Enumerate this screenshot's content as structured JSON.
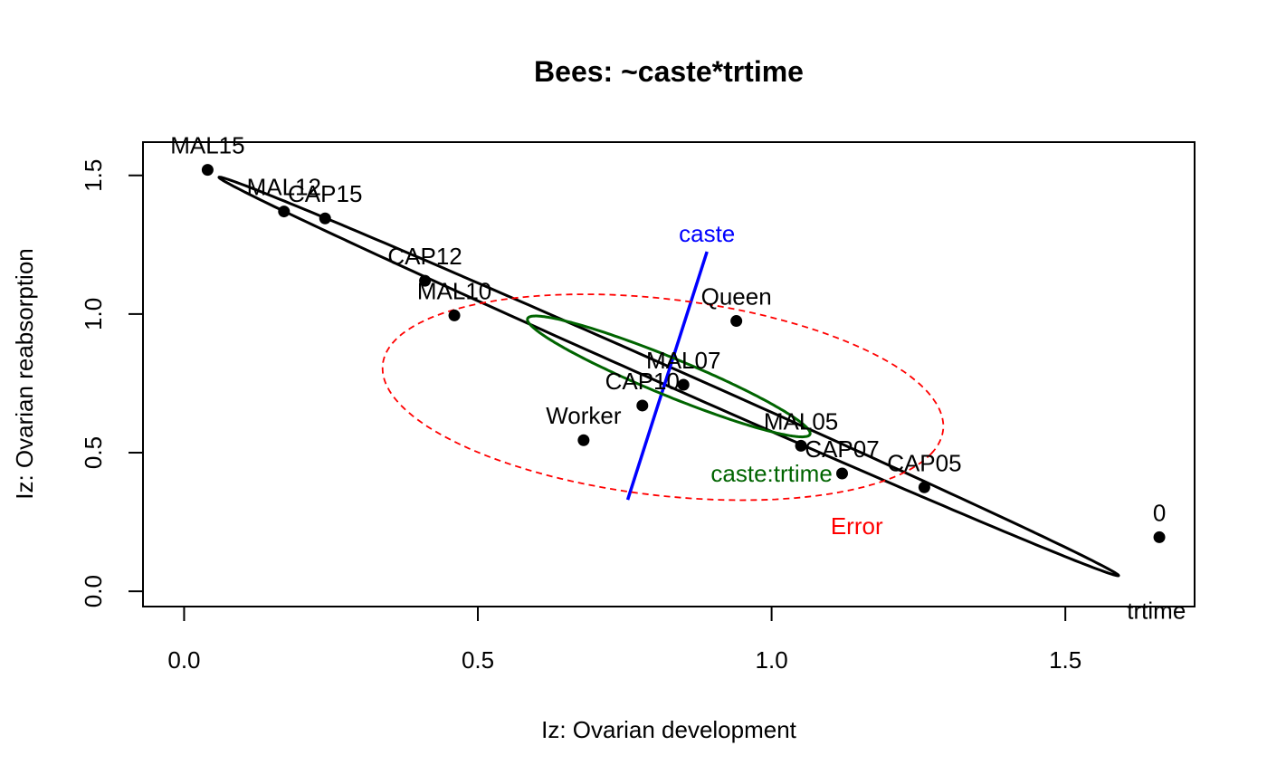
{
  "chart_data": {
    "type": "scatter",
    "title": "Bees: ~caste*trtime",
    "xlabel": "Iz: Ovarian development",
    "ylabel": "Iz: Ovarian reabsorption",
    "xlim": [
      -0.07,
      1.72
    ],
    "ylim": [
      -0.055,
      1.62
    ],
    "x_ticks": [
      "0.0",
      "0.5",
      "1.0",
      "1.5"
    ],
    "y_ticks": [
      "0.0",
      "0.5",
      "1.0",
      "1.5"
    ],
    "x_tick_values": [
      0,
      0.5,
      1.0,
      1.5
    ],
    "y_tick_values": [
      0,
      0.5,
      1.0,
      1.5
    ],
    "grid": false,
    "points": [
      {
        "label": "MAL15",
        "x": 0.04,
        "y": 1.52
      },
      {
        "label": "MAL12",
        "x": 0.17,
        "y": 1.37
      },
      {
        "label": "CAP15",
        "x": 0.24,
        "y": 1.345
      },
      {
        "label": "CAP12",
        "x": 0.41,
        "y": 1.12
      },
      {
        "label": "MAL10",
        "x": 0.46,
        "y": 0.995
      },
      {
        "label": "Queen",
        "x": 0.94,
        "y": 0.975
      },
      {
        "label": "MAL07",
        "x": 0.85,
        "y": 0.745
      },
      {
        "label": "CAP10",
        "x": 0.78,
        "y": 0.67
      },
      {
        "label": "Worker",
        "x": 0.68,
        "y": 0.545
      },
      {
        "label": "MAL05",
        "x": 1.05,
        "y": 0.525
      },
      {
        "label": "CAP07",
        "x": 1.12,
        "y": 0.425
      },
      {
        "label": "CAP05",
        "x": 1.26,
        "y": 0.375
      },
      {
        "label": "0",
        "x": 1.66,
        "y": 0.195
      }
    ],
    "effects": [
      {
        "name": "trtime",
        "type": "ellipse",
        "color": "#000000",
        "style": "solid",
        "cx": 0.825,
        "cy": 0.775,
        "semi_major": 1.05,
        "semi_minor": 0.026,
        "angle_deg": -43.2
      },
      {
        "name": "caste",
        "type": "line",
        "color": "#0000ff",
        "style": "solid",
        "x1": 0.755,
        "y1": 0.33,
        "x2": 0.89,
        "y2": 1.225
      },
      {
        "name": "caste:trtime",
        "type": "ellipse",
        "color": "#006400",
        "style": "solid",
        "cx": 0.825,
        "cy": 0.775,
        "semi_major": 0.32,
        "semi_minor": 0.055,
        "angle_deg": -42
      },
      {
        "name": "Error",
        "type": "ellipse",
        "color": "#ff0000",
        "style": "dashed",
        "cx": 0.815,
        "cy": 0.7,
        "semi_major": 0.5,
        "semi_minor": 0.34,
        "angle_deg": -24
      }
    ],
    "effect_labels": [
      {
        "text": "trtime",
        "x": 1.655,
        "y": -0.07,
        "color": "#000000"
      },
      {
        "text": "caste",
        "x": 0.89,
        "y": 1.29,
        "color": "#0000ff"
      },
      {
        "text": "caste:trtime",
        "x": 1.0,
        "y": 0.425,
        "color": "#006400"
      },
      {
        "text": "Error",
        "x": 1.145,
        "y": 0.235,
        "color": "#ff0000"
      }
    ]
  }
}
